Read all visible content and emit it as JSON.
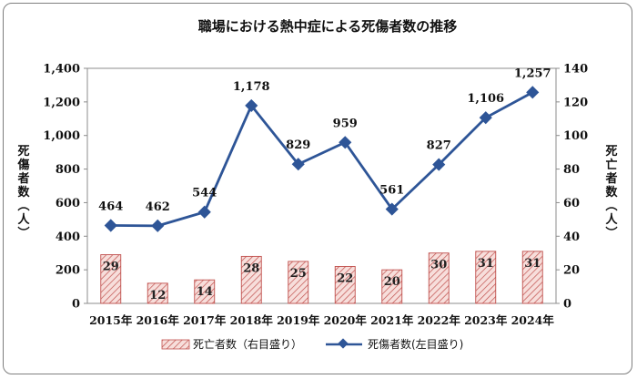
{
  "chart_data": {
    "type": "bar+line",
    "title": "職場における熱中症による死傷者数の推移",
    "categories": [
      "2015年",
      "2016年",
      "2017年",
      "2018年",
      "2019年",
      "2020年",
      "2021年",
      "2022年",
      "2023年",
      "2024年"
    ],
    "series": [
      {
        "name": "死亡者数（右目盛り）",
        "type": "bar",
        "axis": "right",
        "values": [
          29,
          12,
          14,
          28,
          25,
          22,
          20,
          30,
          31,
          31
        ]
      },
      {
        "name": "死傷者数(左目盛り)",
        "type": "line",
        "axis": "left",
        "values": [
          464,
          462,
          544,
          1178,
          829,
          959,
          561,
          827,
          1106,
          1257
        ],
        "labels": [
          "464",
          "462",
          "544",
          "1,178",
          "829",
          "959",
          "561",
          "827",
          "1,106",
          "1,257"
        ]
      }
    ],
    "ylabel_left": "死傷者数(人)",
    "ylabel_right": "死亡者数(人)",
    "ylim_left": [
      0,
      1400
    ],
    "ylim_right": [
      0,
      140
    ],
    "yticks_left": [
      "0",
      "200",
      "400",
      "600",
      "800",
      "1,000",
      "1,200",
      "1,400"
    ],
    "yticks_right": [
      "0",
      "20",
      "40",
      "60",
      "80",
      "100",
      "120",
      "140"
    ],
    "legend_position": "bottom",
    "grid": false,
    "colors": {
      "bar_fill": "#f6d9d6",
      "bar_hatch": "#c0504d",
      "line": "#2e5597"
    }
  }
}
